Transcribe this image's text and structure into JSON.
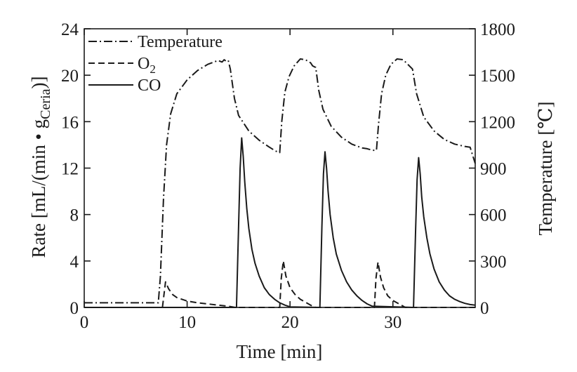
{
  "chart_data": {
    "type": "line",
    "title": "",
    "xlabel": "Time [min]",
    "ylabel": {
      "prefix": "Rate [mL/(min • g",
      "subscript": "Ceria",
      "suffix": ")]"
    },
    "ylabel_right": "Temperature [℃]",
    "xlim": [
      0,
      38
    ],
    "ylim": [
      0,
      24
    ],
    "ylim_right": [
      0,
      1800
    ],
    "x_ticks": [
      0,
      10,
      20,
      30
    ],
    "y_ticks": [
      0,
      4,
      8,
      12,
      16,
      20,
      24
    ],
    "y_ticks_right": [
      0,
      300,
      600,
      900,
      1200,
      1500,
      1800
    ],
    "grid": false,
    "legend": {
      "position": "top-left",
      "entries": [
        {
          "key": "temperature",
          "label": "Temperature",
          "style": "dash-dot"
        },
        {
          "key": "o2",
          "label": "O",
          "subscript": "2",
          "style": "dashed"
        },
        {
          "key": "co",
          "label": "CO",
          "style": "solid"
        }
      ]
    },
    "series": [
      {
        "name": "Temperature",
        "axis": "right",
        "style": "dash-dot",
        "x": [
          0,
          7.2,
          7.4,
          7.7,
          8.0,
          8.4,
          9.0,
          10.0,
          11.0,
          12.0,
          13.0,
          13.4,
          13.6,
          13.8,
          14.0,
          14.2,
          14.6,
          15.0,
          16.0,
          17.0,
          18.0,
          18.6,
          19.0,
          19.2,
          19.5,
          19.9,
          20.4,
          21.0,
          21.5,
          22.0,
          22.2,
          22.5,
          22.8,
          23.2,
          24.0,
          25.0,
          26.0,
          27.0,
          27.5,
          28.0,
          28.4,
          28.6,
          28.9,
          29.3,
          29.8,
          30.4,
          31.0,
          31.3,
          31.6,
          31.9,
          32.3,
          33.0,
          34.0,
          35.0,
          36.0,
          37.0,
          37.5,
          38.0
        ],
        "values": [
          30,
          30,
          200,
          700,
          1050,
          1250,
          1380,
          1470,
          1530,
          1570,
          1595,
          1585,
          1600,
          1590,
          1595,
          1540,
          1350,
          1240,
          1140,
          1080,
          1035,
          1010,
          1000,
          1200,
          1390,
          1490,
          1560,
          1605,
          1600,
          1580,
          1560,
          1550,
          1400,
          1280,
          1170,
          1100,
          1055,
          1030,
          1025,
          1015,
          1015,
          1180,
          1380,
          1500,
          1570,
          1605,
          1600,
          1580,
          1560,
          1540,
          1380,
          1230,
          1140,
          1085,
          1055,
          1040,
          1035,
          930
        ]
      },
      {
        "name": "O2",
        "axis": "left",
        "style": "dashed",
        "x": [
          0,
          7.6,
          7.9,
          8.2,
          8.6,
          9.0,
          10.0,
          11.0,
          12.0,
          13.0,
          14.0,
          14.7,
          19.0,
          19.15,
          19.35,
          19.6,
          20.0,
          20.5,
          21.0,
          21.6,
          22.0,
          22.3,
          22.5,
          28.2,
          28.35,
          28.55,
          28.8,
          29.1,
          29.5,
          30.0,
          30.6,
          31.0,
          31.2,
          38.0
        ],
        "values": [
          0,
          0,
          2.2,
          1.6,
          1.1,
          0.85,
          0.55,
          0.4,
          0.3,
          0.2,
          0.1,
          0,
          0,
          2.5,
          4.0,
          2.7,
          1.7,
          1.1,
          0.7,
          0.4,
          0.2,
          0.05,
          0,
          0,
          2.5,
          3.9,
          2.6,
          1.7,
          1.0,
          0.6,
          0.3,
          0.1,
          0,
          0
        ]
      },
      {
        "name": "CO",
        "axis": "left",
        "style": "solid",
        "x": [
          0,
          14.8,
          15.0,
          15.15,
          15.3,
          15.45,
          15.6,
          15.8,
          16.0,
          16.3,
          16.6,
          17.0,
          17.5,
          18.0,
          18.5,
          19.0,
          19.5,
          20.0,
          22.9,
          23.1,
          23.25,
          23.4,
          23.55,
          23.7,
          23.9,
          24.2,
          24.5,
          25.0,
          25.5,
          26.0,
          26.5,
          27.0,
          27.5,
          28.0,
          32.0,
          32.2,
          32.35,
          32.5,
          32.65,
          32.8,
          33.0,
          33.3,
          33.6,
          34.0,
          34.5,
          35.0,
          35.5,
          36.0,
          36.5,
          37.0,
          37.5,
          38.0
        ],
        "values": [
          0,
          0,
          7.0,
          12.0,
          14.6,
          13.0,
          10.8,
          8.5,
          6.8,
          5.0,
          3.8,
          2.7,
          1.7,
          1.1,
          0.7,
          0.4,
          0.2,
          0.05,
          0,
          7.0,
          11.5,
          13.4,
          12.0,
          10.0,
          8.0,
          6.0,
          4.6,
          3.2,
          2.2,
          1.5,
          1.0,
          0.6,
          0.3,
          0.1,
          0,
          6.5,
          11.0,
          12.9,
          11.5,
          9.5,
          7.8,
          6.0,
          4.6,
          3.3,
          2.2,
          1.5,
          1.0,
          0.7,
          0.5,
          0.35,
          0.25,
          0.2
        ]
      }
    ]
  }
}
